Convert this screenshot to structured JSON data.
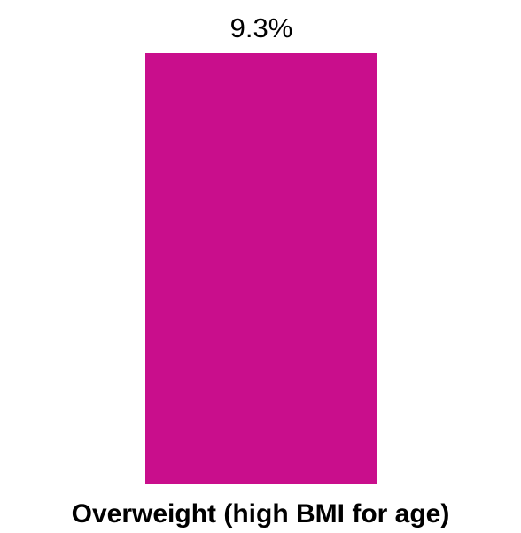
{
  "chart_data": {
    "type": "bar",
    "categories": [
      "Overweight (high BMI for age)"
    ],
    "values": [
      9.3
    ],
    "data_labels": [
      "9.3%"
    ],
    "ylim": [
      0,
      9.3
    ],
    "bar_color": "#C90E8C",
    "grid": false,
    "legend": "none"
  }
}
